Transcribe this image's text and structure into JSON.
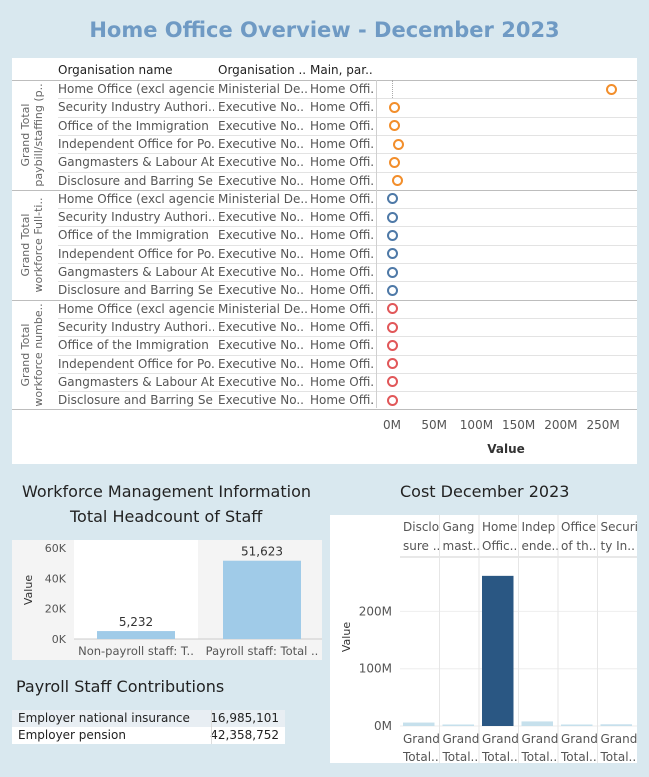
{
  "dashboard": {
    "title": "Home Office Overview - December 2023"
  },
  "chart_data": [
    {
      "type": "scatter",
      "columns": [
        "Organisation name",
        "Organisation ..",
        "Main, par.."
      ],
      "xlabel": "Value",
      "xticks": [
        "0M",
        "50M",
        "100M",
        "150M",
        "200M",
        "250M"
      ],
      "xlim": [
        0,
        270000000
      ],
      "orgs": [
        {
          "name": "Home Office (excl agencie..",
          "type": "Ministerial De..",
          "parent": "Home Offi.."
        },
        {
          "name": "Security Industry Authori..",
          "type": "Executive No..",
          "parent": "Home Offi.."
        },
        {
          "name": "Office of the Immigration ..",
          "type": "Executive No..",
          "parent": "Home Offi.."
        },
        {
          "name": "Independent Office for Po..",
          "type": "Executive No..",
          "parent": "Home Offi.."
        },
        {
          "name": "Gangmasters & Labour Ab..",
          "type": "Executive No..",
          "parent": "Home Offi.."
        },
        {
          "name": "Disclosure and Barring Se..",
          "type": "Executive No..",
          "parent": "Home Offi.."
        }
      ],
      "groups": [
        {
          "label_line1": "Grand Total",
          "label_line2": "paybill/staffing (p..",
          "color": "#f28e2b",
          "values": [
            260000000,
            3500000,
            3000000,
            8000000,
            2500000,
            6000000
          ]
        },
        {
          "label_line1": "Grand Total",
          "label_line2": "workforce Full-ti..",
          "color": "#4e79a7",
          "values": [
            40000,
            400,
            150,
            1500,
            150,
            1100
          ]
        },
        {
          "label_line1": "Grand Total",
          "label_line2": "workforce numbe..",
          "color": "#e15759",
          "values": [
            42000,
            420,
            160,
            1600,
            160,
            1200
          ]
        }
      ]
    },
    {
      "type": "bar",
      "title_line1": "Workforce Management Information",
      "title_line2": "Total Headcount of Staff",
      "categories": [
        "Non-payroll staff: T..",
        "Payroll staff: Total .."
      ],
      "values": [
        5232,
        51623
      ],
      "value_labels": [
        "5,232",
        "51,623"
      ],
      "ylabel": "Value",
      "yticks": [
        "0K",
        "20K",
        "40K",
        "60K"
      ],
      "ylim": [
        0,
        60000
      ],
      "color": "#a0cbe8"
    },
    {
      "type": "bar",
      "title": "Cost December 2023",
      "columns_top": [
        "Disclo sure ..",
        "Gang mast..",
        "Home Offic..",
        "Indep ende..",
        "Office of th..",
        "Securi ty In.."
      ],
      "columns_bottom": [
        "Grand Total..",
        "Grand Total..",
        "Grand Total..",
        "Grand Total..",
        "Grand Total..",
        "Grand Total.."
      ],
      "values": [
        6000000,
        1500000,
        262000000,
        8000000,
        1000000,
        3000000
      ],
      "colors": [
        "#c6e0ec",
        "#c6e0ec",
        "#2a5783",
        "#c6e0ec",
        "#c6e0ec",
        "#c6e0ec"
      ],
      "ylabel": "Value",
      "yticks": [
        "0M",
        "100M",
        "200M"
      ],
      "ylim": [
        0,
        260000000
      ]
    }
  ],
  "payroll": {
    "title": "Payroll Staff Contributions",
    "rows": [
      {
        "label": "Employer national insurance",
        "value": "16,985,101"
      },
      {
        "label": "Employer pension",
        "value": "42,358,752"
      }
    ]
  }
}
